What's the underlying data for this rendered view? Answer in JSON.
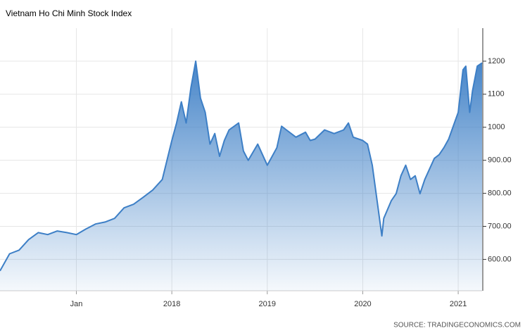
{
  "chart_data": {
    "type": "area",
    "title": "Vietnam Ho Chi Minh Stock Index",
    "source": "SOURCE: TRADINGECONOMICS.COM",
    "x": [
      2016.2,
      2016.3,
      2016.4,
      2016.5,
      2016.6,
      2016.7,
      2016.8,
      2016.9,
      2017.0,
      2017.1,
      2017.2,
      2017.3,
      2017.4,
      2017.5,
      2017.6,
      2017.7,
      2017.8,
      2017.9,
      2018.0,
      2018.05,
      2018.1,
      2018.15,
      2018.2,
      2018.25,
      2018.3,
      2018.35,
      2018.4,
      2018.45,
      2018.5,
      2018.55,
      2018.6,
      2018.7,
      2018.75,
      2018.8,
      2018.9,
      2019.0,
      2019.1,
      2019.15,
      2019.2,
      2019.3,
      2019.4,
      2019.45,
      2019.5,
      2019.6,
      2019.7,
      2019.8,
      2019.85,
      2019.9,
      2020.0,
      2020.05,
      2020.1,
      2020.15,
      2020.2,
      2020.22,
      2020.3,
      2020.35,
      2020.4,
      2020.45,
      2020.5,
      2020.55,
      2020.6,
      2020.65,
      2020.7,
      2020.75,
      2020.8,
      2020.85,
      2020.9,
      2021.0,
      2021.05,
      2021.08,
      2021.12,
      2021.15,
      2021.2,
      2021.25
    ],
    "series": [
      {
        "name": "Vietnam Ho Chi Minh Stock Index",
        "color": "#3d7fc6",
        "values": [
          565,
          617,
          628,
          660,
          681,
          675,
          686,
          681,
          675,
          692,
          707,
          713,
          724,
          756,
          767,
          788,
          810,
          842,
          960,
          1013,
          1077,
          1013,
          1120,
          1200,
          1088,
          1045,
          949,
          981,
          912,
          960,
          992,
          1013,
          928,
          900,
          949,
          885,
          938,
          1003,
          992,
          970,
          985,
          960,
          964,
          992,
          981,
          992,
          1013,
          970,
          960,
          949,
          885,
          778,
          671,
          724,
          778,
          799,
          853,
          885,
          842,
          853,
          799,
          842,
          874,
          906,
          917,
          938,
          964,
          1045,
          1174,
          1185,
          1045,
          1110,
          1185,
          1195
        ]
      }
    ],
    "xlim": [
      2016.2,
      2021.25
    ],
    "xticks": [
      {
        "value": 2017,
        "label": "Jan"
      },
      2018,
      2019,
      2020,
      2021
    ],
    "ylim": [
      505,
      1300
    ],
    "yticks": [
      {
        "value": 600,
        "label": "600.00"
      },
      {
        "value": 700,
        "label": "700.00"
      },
      {
        "value": 800,
        "label": "800.00"
      },
      {
        "value": 900,
        "label": "900.00"
      },
      1000,
      1100,
      1200
    ],
    "grid": true
  }
}
